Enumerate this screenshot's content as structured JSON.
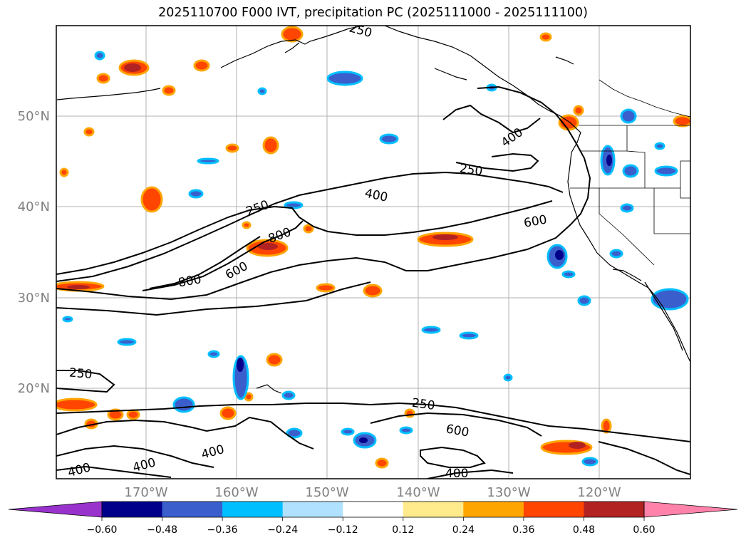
{
  "title": "2025110700 F000 IVT, precipitation PC (2025111000 - 2025111100)",
  "lat_labels": [
    "50°N",
    "40°N",
    "30°N",
    "20°N"
  ],
  "lon_labels": [
    "170°W",
    "160°W",
    "150°W",
    "140°W",
    "130°W",
    "120°W"
  ],
  "ivt_contour_labels": [
    "250",
    "250",
    "250",
    "250",
    "250",
    "400",
    "400",
    "400",
    "400",
    "400",
    "400",
    "600",
    "600",
    "600",
    "800",
    "800"
  ],
  "colorbar": {
    "ticks": [
      "−0.60",
      "−0.48",
      "−0.36",
      "−0.24",
      "−0.12",
      "0.12",
      "0.24",
      "0.36",
      "0.48",
      "0.60"
    ],
    "colors": [
      "#9932cc",
      "#00008b",
      "#3a5fcd",
      "#00bfff",
      "#b0e2ff",
      "#ffffff",
      "#ffeb8b",
      "#ffa500",
      "#ff4500",
      "#b22222",
      "#ff82ab"
    ]
  }
}
